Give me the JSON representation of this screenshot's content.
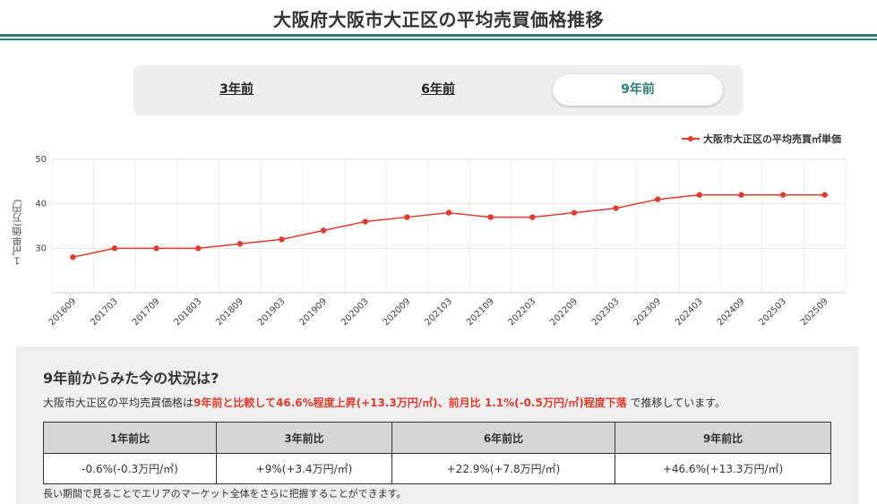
{
  "page": {
    "title": "大阪府大阪市大正区の平均売買価格推移"
  },
  "tabs": [
    {
      "label": "3年前",
      "active": false
    },
    {
      "label": "6年前",
      "active": false
    },
    {
      "label": "9年前",
      "active": true
    }
  ],
  "colors": {
    "accent": "#2e7d78",
    "series": "#e03b2e",
    "highlight": "#e03b2e"
  },
  "chart_data": {
    "type": "line",
    "title": "",
    "xlabel": "",
    "ylabel": "１㎡単価(万円)",
    "ylim": [
      20,
      50
    ],
    "yticks": [
      30,
      40,
      50
    ],
    "grid": true,
    "legend_position": "top-right",
    "categories": [
      "201609",
      "201703",
      "201709",
      "201803",
      "201809",
      "201903",
      "201909",
      "202003",
      "202009",
      "202103",
      "202109",
      "202203",
      "202209",
      "202303",
      "202309",
      "202403",
      "202409",
      "202503",
      "202509"
    ],
    "series": [
      {
        "name": "大阪市大正区の平均売買㎡単価",
        "values": [
          28,
          30,
          30,
          30,
          31,
          32,
          34,
          36,
          37,
          38,
          37,
          37,
          38,
          39,
          41,
          42,
          42,
          42,
          42
        ]
      }
    ]
  },
  "summary": {
    "title": "9年前からみた今の状況は?",
    "text_prefix": "大阪市大正区の平均売買価格は",
    "text_highlight": "9年前と比較して46.6%程度上昇(+13.3万円/㎡)、前月比 1.1%(-0.5万円/㎡)程度下落",
    "text_suffix": " で推移しています。",
    "table": {
      "headers": [
        "1年前比",
        "3年前比",
        "6年前比",
        "9年前比"
      ],
      "values": [
        "-0.6%(-0.3万円/㎡)",
        "+9%(+3.4万円/㎡)",
        "+22.9%(+7.8万円/㎡)",
        "+46.6%(+13.3万円/㎡)"
      ]
    },
    "note": "長い期間で見ることでエリアのマーケット全体をさらに把握することができます。"
  }
}
